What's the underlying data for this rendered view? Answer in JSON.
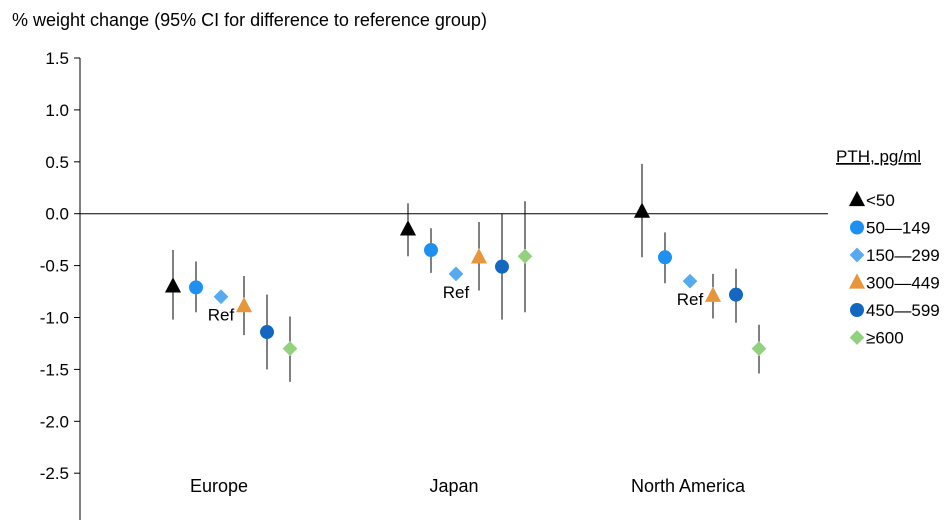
{
  "chart_data": {
    "type": "scatter",
    "title": "% weight change (95% CI for difference to reference group)",
    "ylim": [
      -3.0,
      1.5
    ],
    "yticks": [
      1.5,
      1.0,
      0.5,
      0.0,
      -0.5,
      -1.0,
      -1.5,
      -2.0,
      -2.5
    ],
    "ytick_labels": [
      "1.5",
      "1.0",
      "0.5",
      "0.0",
      "-0.5",
      "-1.0",
      "-1.5",
      "-2.0",
      "-2.5"
    ],
    "categories": [
      "Europe",
      "Japan",
      "North America"
    ],
    "legend": {
      "title": "PTH, pg/ml",
      "placement": "right"
    },
    "ref_label": "Ref",
    "reference_group": "150—299",
    "series": [
      {
        "name": "<50",
        "marker": "triangle",
        "color": "#000000",
        "values": [
          -0.7,
          -0.15,
          0.02
        ],
        "ci_low": [
          -1.02,
          -0.41,
          -0.42
        ],
        "ci_high": [
          -0.35,
          0.1,
          0.48
        ]
      },
      {
        "name": "50—149",
        "marker": "circle",
        "color": "#1e90f0",
        "values": [
          -0.71,
          -0.35,
          -0.42
        ],
        "ci_low": [
          -0.95,
          -0.57,
          -0.67
        ],
        "ci_high": [
          -0.46,
          -0.14,
          -0.18
        ]
      },
      {
        "name": "150—299",
        "marker": "diamond",
        "color": "#55aaf0",
        "values": [
          -0.8,
          -0.58,
          -0.65
        ],
        "ci_low": [
          null,
          null,
          null
        ],
        "ci_high": [
          null,
          null,
          null
        ]
      },
      {
        "name": "300—449",
        "marker": "triangle",
        "color": "#e8963c",
        "values": [
          -0.89,
          -0.42,
          -0.79
        ],
        "ci_low": [
          -1.17,
          -0.74,
          -1.01
        ],
        "ci_high": [
          -0.6,
          -0.08,
          -0.58
        ]
      },
      {
        "name": "450—599",
        "marker": "circle",
        "color": "#1467c1",
        "values": [
          -1.14,
          -0.51,
          -0.78
        ],
        "ci_low": [
          -1.5,
          -1.02,
          -1.05
        ],
        "ci_high": [
          -0.78,
          0.0,
          -0.53
        ]
      },
      {
        "name": "≥600",
        "marker": "diamond",
        "color": "#92d27e",
        "values": [
          -1.3,
          -0.41,
          -1.3
        ],
        "ci_low": [
          -1.62,
          -0.95,
          -1.54
        ],
        "ci_high": [
          -0.99,
          0.12,
          -1.07
        ]
      }
    ],
    "grid": false
  }
}
